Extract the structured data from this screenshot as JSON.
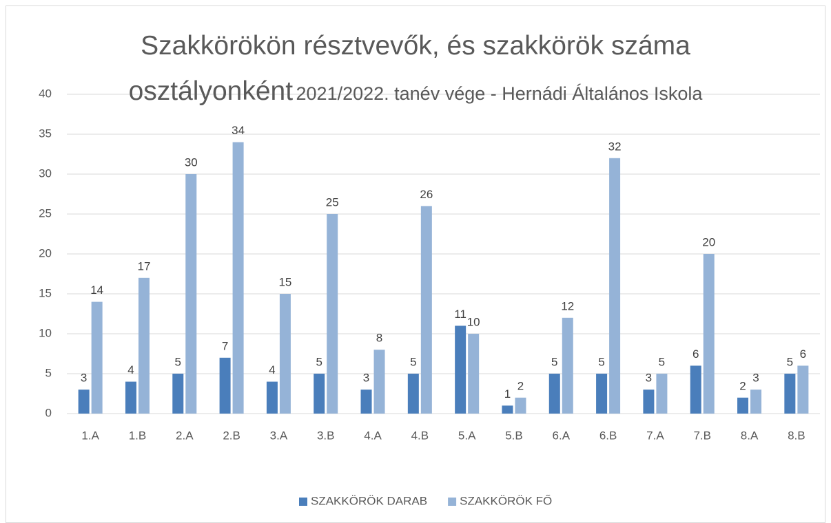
{
  "chart_data": {
    "type": "bar",
    "title": "Szakkörökön résztvevők, és szakkörök száma osztályonként",
    "subtitle": "2021/2022. tanév vége - Hernádi Általános Iskola",
    "categories": [
      "1.A",
      "1.B",
      "2.A",
      "2.B",
      "3.A",
      "3.B",
      "4.A",
      "4.B",
      "5.A",
      "5.B",
      "6.A",
      "6.B",
      "7.A",
      "7.B",
      "8.A",
      "8.B"
    ],
    "series": [
      {
        "name": "SZAKKÖRÖK DARAB",
        "color": "#4a7ebb",
        "values": [
          3,
          4,
          5,
          7,
          4,
          5,
          3,
          5,
          11,
          1,
          5,
          5,
          3,
          6,
          2,
          5
        ]
      },
      {
        "name": "SZAKKÖRÖK FŐ",
        "color": "#95b3d7",
        "values": [
          14,
          17,
          30,
          34,
          15,
          25,
          8,
          26,
          10,
          2,
          12,
          32,
          5,
          20,
          3,
          6
        ]
      }
    ],
    "ylim": [
      0,
      40
    ],
    "yticks": [
      0,
      5,
      10,
      15,
      20,
      25,
      30,
      35,
      40
    ],
    "grid": true,
    "legend": "bottom"
  }
}
